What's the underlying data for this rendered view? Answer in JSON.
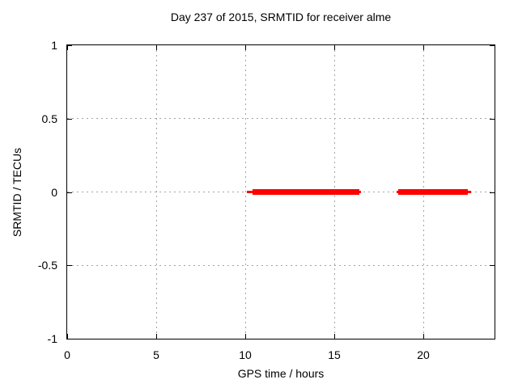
{
  "chart_data": {
    "type": "line",
    "title": "Day 237 of 2015, SRMTID for receiver alme",
    "xlabel": "GPS time / hours",
    "ylabel": "SRMTID / TECUs",
    "xlim": [
      0,
      24
    ],
    "ylim": [
      -1,
      1
    ],
    "xticks": [
      0,
      5,
      10,
      15,
      20
    ],
    "xtick_labels": [
      "0",
      "5",
      "10",
      "15",
      "20"
    ],
    "yticks": [
      -1,
      -0.5,
      0,
      0.5,
      1
    ],
    "ytick_labels": [
      "-1",
      "-0.5",
      "0",
      "0.5",
      "1"
    ],
    "grid": true,
    "legend": "none",
    "series": [
      {
        "name": "SRMTID",
        "color": "#ff0000",
        "style": "thick horizontal line segments at constant value",
        "segments": [
          {
            "x_start": 10.1,
            "x_thick_start": 10.4,
            "x_thick_end": 16.4,
            "x_end": 16.5,
            "y": 0
          },
          {
            "x_start": 18.5,
            "x_thick_start": 18.6,
            "x_thick_end": 22.5,
            "x_end": 22.7,
            "y": 0
          }
        ]
      }
    ],
    "colors": {
      "line": "#ff0000",
      "grid": "#a3a3a3",
      "border": "#000000",
      "text": "#000000",
      "background": "#ffffff"
    }
  }
}
